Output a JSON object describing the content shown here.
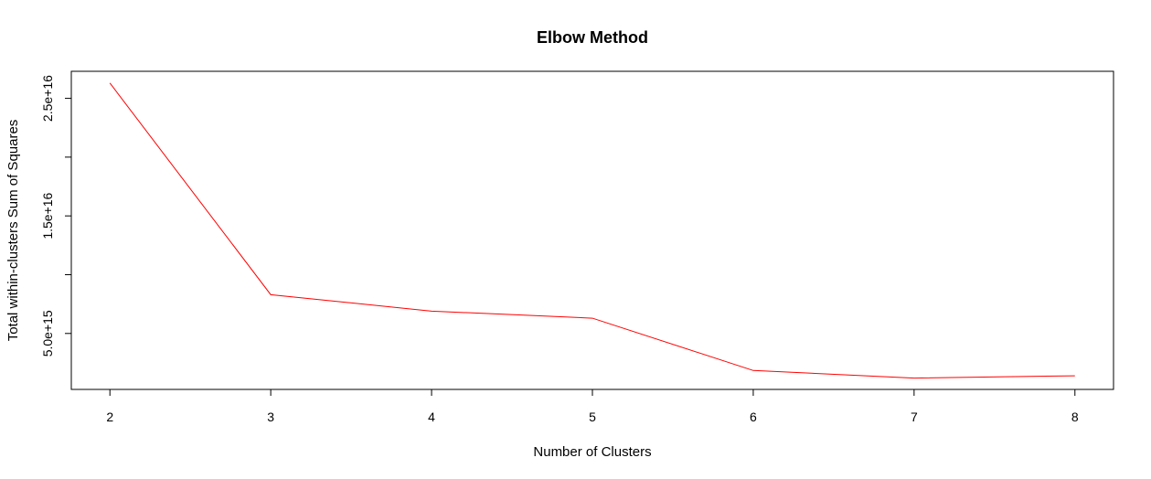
{
  "chart_data": {
    "type": "line",
    "title": "Elbow Method",
    "xlabel": "Number of Clusters",
    "ylabel": "Total within-clusters Sum of Squares",
    "x": [
      2,
      3,
      4,
      5,
      6,
      7,
      8
    ],
    "series": [
      {
        "values": [
          2.63e+16,
          8300000000000000.0,
          6900000000000000.0,
          6300000000000000.0,
          1850000000000000.0,
          1200000000000000.0,
          1400000000000000.0
        ],
        "color": "#ff0000"
      }
    ],
    "xticks": [
      {
        "value": 2,
        "label": "2"
      },
      {
        "value": 3,
        "label": "3"
      },
      {
        "value": 4,
        "label": "4"
      },
      {
        "value": 5,
        "label": "5"
      },
      {
        "value": 6,
        "label": "6"
      },
      {
        "value": 7,
        "label": "7"
      },
      {
        "value": 8,
        "label": "8"
      }
    ],
    "yticks": [
      {
        "value": 5000000000000000.0,
        "label": "5.0e+15"
      },
      {
        "value": 1e+16,
        "label": ""
      },
      {
        "value": 1.5e+16,
        "label": "1.5e+16"
      },
      {
        "value": 2e+16,
        "label": ""
      },
      {
        "value": 2.5e+16,
        "label": "2.5e+16"
      }
    ],
    "xlim": [
      1.76,
      8.24
    ],
    "ylim": [
      240000000000000.0,
      2.73e+16
    ],
    "grid": false,
    "legend": "none"
  }
}
